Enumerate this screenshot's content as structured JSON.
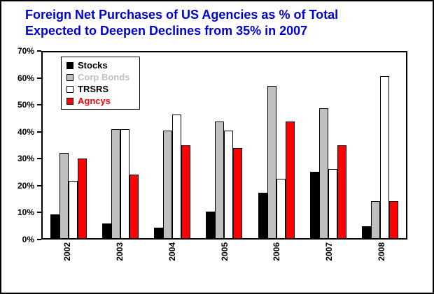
{
  "title": {
    "line1": "Foreign Net Purchases of US Agencies as % of Total",
    "line2": "Expected to Deepen Declines from 35% in 2007"
  },
  "colors": {
    "title_blue": "#0000cc",
    "stocks": "#000000",
    "corp_bonds": "#c0c0c0",
    "trsrs": "#ffffff",
    "agncys": "#ff0000"
  },
  "chart_data": {
    "type": "bar",
    "title": "Foreign Net Purchases of US Agencies as % of Total Expected to Deepen Declines from 35% in 2007",
    "categories": [
      "2002",
      "2003",
      "2004",
      "2005",
      "2006",
      "2007",
      "2008"
    ],
    "series": [
      {
        "name": "Stocks",
        "color": "#000000",
        "label_color": "#000000",
        "values": [
          9,
          5.5,
          4,
          10,
          17,
          25,
          4.5
        ]
      },
      {
        "name": "Corp Bonds",
        "color": "#c0c0c0",
        "label_color": "#c0c0c0",
        "values": [
          32,
          41,
          40.5,
          44,
          57.5,
          49,
          14
        ]
      },
      {
        "name": "TRSRS",
        "color": "#ffffff",
        "label_color": "#000000",
        "values": [
          21.5,
          41,
          46.5,
          40.5,
          22.5,
          26,
          61
        ]
      },
      {
        "name": "Agncys",
        "color": "#ff0000",
        "label_color": "#ff0000",
        "values": [
          30,
          24,
          35,
          34,
          44,
          35,
          14
        ]
      }
    ],
    "xlabel": "",
    "ylabel": "",
    "ylim": [
      0,
      70
    ],
    "ytick_step": 10,
    "ytick_labels": [
      "0%",
      "10%",
      "20%",
      "30%",
      "40%",
      "50%",
      "60%",
      "70%"
    ],
    "grid": false,
    "legend_position": "top-left"
  }
}
